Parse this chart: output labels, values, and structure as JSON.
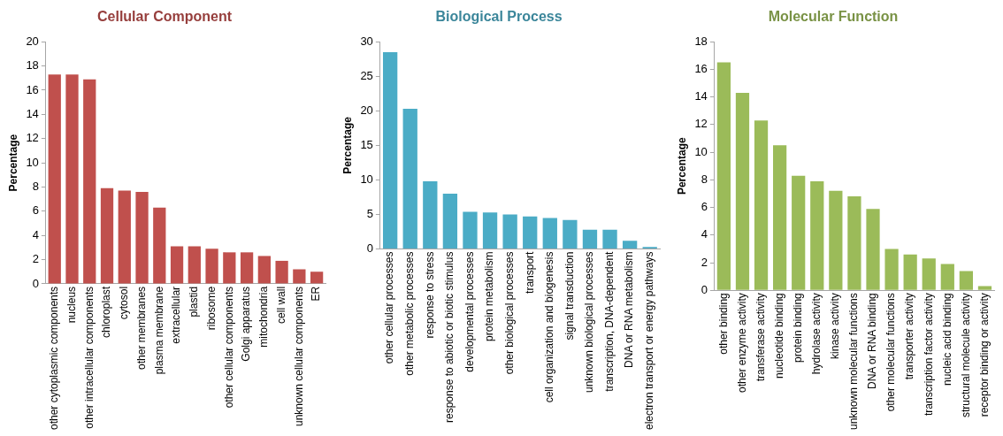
{
  "chart_data": [
    {
      "type": "bar",
      "title": "Cellular Component",
      "ylabel": "Percentage",
      "categories": [
        "other cytoplasmic components",
        "nucleus",
        "other intracellular components",
        "chloroplast",
        "cytosol",
        "other membranes",
        "plasma membrane",
        "extracellular",
        "plastid",
        "ribosome",
        "other cellular components",
        "Golgi apparatus",
        "mitochondria",
        "cell wall",
        "unknown cellular components",
        "ER"
      ],
      "values": [
        17.3,
        17.3,
        16.9,
        7.9,
        7.7,
        7.6,
        6.3,
        3.1,
        3.1,
        2.9,
        2.6,
        2.6,
        2.3,
        1.9,
        1.2,
        1.0
      ],
      "color": "#c0504d",
      "ylim": [
        0,
        20
      ],
      "yticks": [
        0,
        2,
        4,
        6,
        8,
        10,
        12,
        14,
        16,
        18,
        20
      ],
      "grid": false,
      "legend": false
    },
    {
      "type": "bar",
      "title": "Biological Process",
      "ylabel": "Percentage",
      "categories": [
        "other cellular processes",
        "other metabolic processes",
        "response to stress",
        "response to abiotic or biotic stimulus",
        "developmental processes",
        "protein metabolism",
        "other biological processes",
        "transport",
        "cell organization and biogenesis",
        "signal transduction",
        "unknown biological processes",
        "transcription, DNA-dependent",
        "DNA or RNA metabolism",
        "electron transport or energy pathways"
      ],
      "values": [
        28.5,
        20.3,
        9.8,
        8.0,
        5.4,
        5.3,
        5.0,
        4.7,
        4.5,
        4.2,
        2.8,
        2.8,
        1.2,
        0.3
      ],
      "color": "#4bacc6",
      "ylim": [
        0,
        30
      ],
      "yticks": [
        0,
        5,
        10,
        15,
        20,
        25,
        30
      ],
      "grid": false,
      "legend": false
    },
    {
      "type": "bar",
      "title": "Molecular Function",
      "ylabel": "Percentage",
      "categories": [
        "other binding",
        "other enzyme activity",
        "transferase activity",
        "nucleotide binding",
        "protein binding",
        "hydrolase activity",
        "kinase activity",
        "unknown molecular functions",
        "DNA or RNA binding",
        "other molecular functions",
        "transporter activity",
        "transcription factor activity",
        "nucleic acid binding",
        "structural molecule activity",
        "receptor binding or activity"
      ],
      "values": [
        16.5,
        14.3,
        12.3,
        10.5,
        8.3,
        7.9,
        7.2,
        6.8,
        5.9,
        3.0,
        2.6,
        2.3,
        1.9,
        1.4,
        0.3
      ],
      "color": "#9bbb59",
      "ylim": [
        0,
        18
      ],
      "yticks": [
        0,
        2,
        4,
        6,
        8,
        10,
        12,
        14,
        16,
        18
      ],
      "grid": false,
      "legend": false
    }
  ]
}
